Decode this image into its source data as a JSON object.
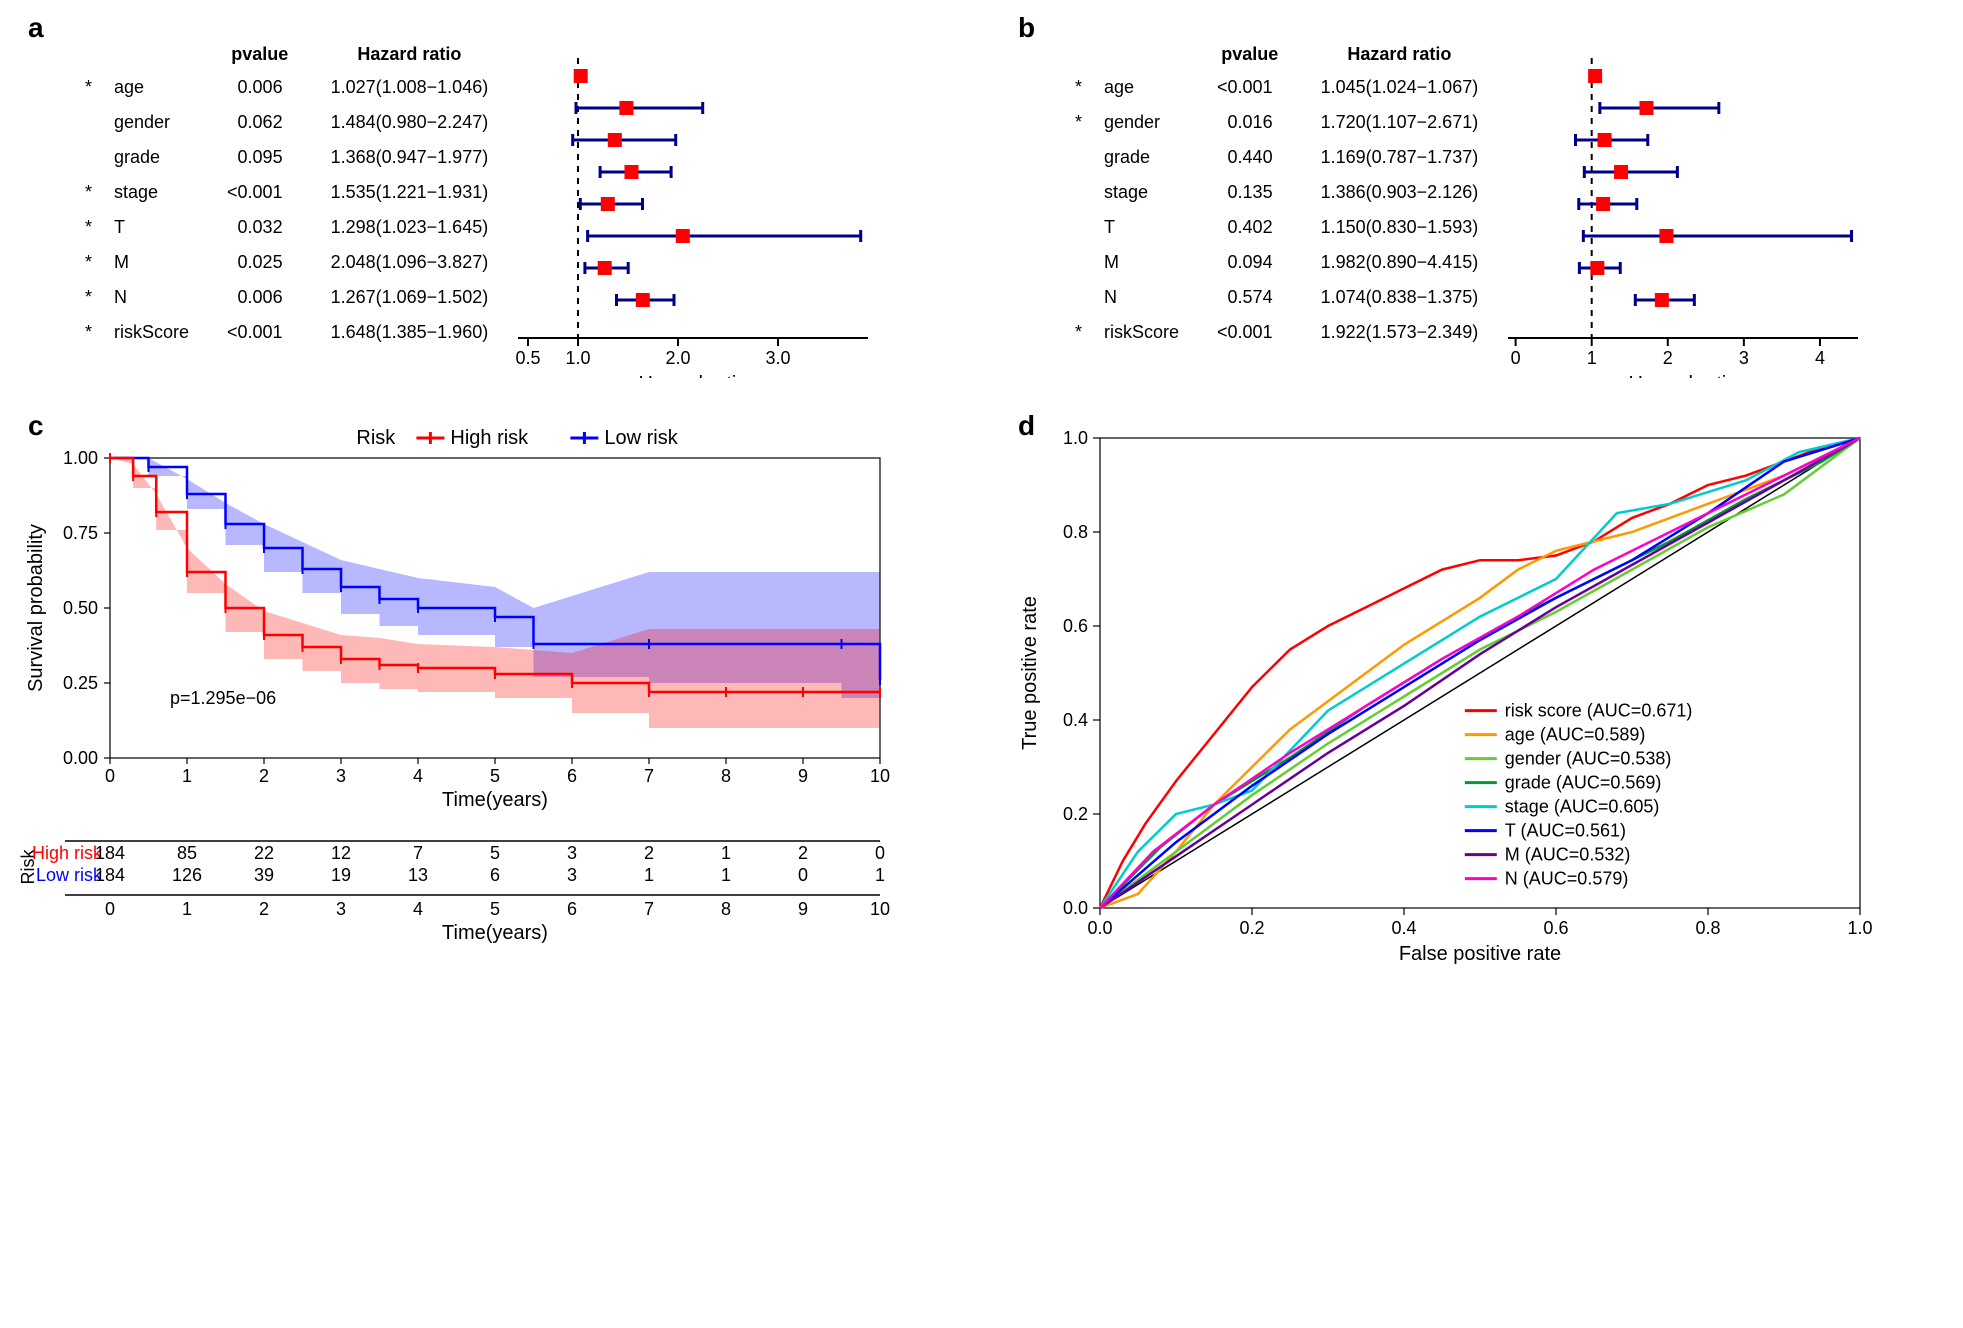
{
  "panel_a": {
    "label": "a",
    "headers": {
      "pvalue": "pvalue",
      "hr": "Hazard ratio"
    },
    "axis_label": "Hazard ratio",
    "x_ticks": [
      0.5,
      1.0,
      2.0,
      3.0
    ],
    "x_tick_labels": [
      "0.5",
      "1.0",
      "2.0",
      "3.0"
    ],
    "xlim": [
      0.4,
      3.9
    ],
    "ref_line": 1.0,
    "rows": [
      {
        "star": "*",
        "name": "age",
        "pvalue": "0.006",
        "hr_text": "1.027(1.008−1.046)",
        "hr": 1.027,
        "lo": 1.008,
        "hi": 1.046
      },
      {
        "star": "",
        "name": "gender",
        "pvalue": "0.062",
        "hr_text": "1.484(0.980−2.247)",
        "hr": 1.484,
        "lo": 0.98,
        "hi": 2.247
      },
      {
        "star": "",
        "name": "grade",
        "pvalue": "0.095",
        "hr_text": "1.368(0.947−1.977)",
        "hr": 1.368,
        "lo": 0.947,
        "hi": 1.977
      },
      {
        "star": "*",
        "name": "stage",
        "pvalue": "<0.001",
        "hr_text": "1.535(1.221−1.931)",
        "hr": 1.535,
        "lo": 1.221,
        "hi": 1.931
      },
      {
        "star": "*",
        "name": "T",
        "pvalue": "0.032",
        "hr_text": "1.298(1.023−1.645)",
        "hr": 1.298,
        "lo": 1.023,
        "hi": 1.645
      },
      {
        "star": "*",
        "name": "M",
        "pvalue": "0.025",
        "hr_text": "2.048(1.096−3.827)",
        "hr": 2.048,
        "lo": 1.096,
        "hi": 3.827
      },
      {
        "star": "*",
        "name": "N",
        "pvalue": "0.006",
        "hr_text": "1.267(1.069−1.502)",
        "hr": 1.267,
        "lo": 1.069,
        "hi": 1.502
      },
      {
        "star": "*",
        "name": "riskScore",
        "pvalue": "<0.001",
        "hr_text": "1.648(1.385−1.960)",
        "hr": 1.648,
        "lo": 1.385,
        "hi": 1.96
      }
    ],
    "colors": {
      "ci": "#00008b",
      "box": "#ff0000",
      "axis": "#000000"
    }
  },
  "panel_b": {
    "label": "b",
    "headers": {
      "pvalue": "pvalue",
      "hr": "Hazard ratio"
    },
    "axis_label": "Hazard ratio",
    "x_ticks": [
      0,
      1,
      2,
      3,
      4
    ],
    "x_tick_labels": [
      "0",
      "1",
      "2",
      "3",
      "4"
    ],
    "xlim": [
      -0.1,
      4.5
    ],
    "ref_line": 1.0,
    "rows": [
      {
        "star": "*",
        "name": "age",
        "pvalue": "<0.001",
        "hr_text": "1.045(1.024−1.067)",
        "hr": 1.045,
        "lo": 1.024,
        "hi": 1.067
      },
      {
        "star": "*",
        "name": "gender",
        "pvalue": "0.016",
        "hr_text": "1.720(1.107−2.671)",
        "hr": 1.72,
        "lo": 1.107,
        "hi": 2.671
      },
      {
        "star": "",
        "name": "grade",
        "pvalue": "0.440",
        "hr_text": "1.169(0.787−1.737)",
        "hr": 1.169,
        "lo": 0.787,
        "hi": 1.737
      },
      {
        "star": "",
        "name": "stage",
        "pvalue": "0.135",
        "hr_text": "1.386(0.903−2.126)",
        "hr": 1.386,
        "lo": 0.903,
        "hi": 2.126
      },
      {
        "star": "",
        "name": "T",
        "pvalue": "0.402",
        "hr_text": "1.150(0.830−1.593)",
        "hr": 1.15,
        "lo": 0.83,
        "hi": 1.593
      },
      {
        "star": "",
        "name": "M",
        "pvalue": "0.094",
        "hr_text": "1.982(0.890−4.415)",
        "hr": 1.982,
        "lo": 0.89,
        "hi": 4.415
      },
      {
        "star": "",
        "name": "N",
        "pvalue": "0.574",
        "hr_text": "1.074(0.838−1.375)",
        "hr": 1.074,
        "lo": 0.838,
        "hi": 1.375
      },
      {
        "star": "*",
        "name": "riskScore",
        "pvalue": "<0.001",
        "hr_text": "1.922(1.573−2.349)",
        "hr": 1.922,
        "lo": 1.573,
        "hi": 2.349
      }
    ],
    "colors": {
      "ci": "#00008b",
      "box": "#ff0000",
      "axis": "#000000"
    }
  },
  "panel_c": {
    "label": "c",
    "legend_title": "Risk",
    "legend_items": [
      {
        "label": "High risk",
        "color": "#ff0000"
      },
      {
        "label": "Low risk",
        "color": "#0000ff"
      }
    ],
    "ylabel": "Survival probability",
    "xlabel": "Time(years)",
    "y_ticks": [
      0.0,
      0.25,
      0.5,
      0.75,
      1.0
    ],
    "x_ticks": [
      0,
      1,
      2,
      3,
      4,
      5,
      6,
      7,
      8,
      9,
      10
    ],
    "p_text": "p=1.295e−06",
    "band_opacity": 0.28,
    "curves": {
      "high": {
        "color": "#ff0000",
        "points": [
          [
            0,
            1.0
          ],
          [
            0.3,
            0.94
          ],
          [
            0.6,
            0.82
          ],
          [
            1,
            0.62
          ],
          [
            1.5,
            0.5
          ],
          [
            2,
            0.41
          ],
          [
            2.5,
            0.37
          ],
          [
            3,
            0.33
          ],
          [
            3.5,
            0.31
          ],
          [
            4,
            0.3
          ],
          [
            5,
            0.28
          ],
          [
            6,
            0.25
          ],
          [
            7,
            0.22
          ],
          [
            8,
            0.22
          ],
          [
            9,
            0.22
          ],
          [
            10,
            0.22
          ]
        ],
        "lo": [
          [
            0,
            1.0
          ],
          [
            0.3,
            0.9
          ],
          [
            0.6,
            0.76
          ],
          [
            1,
            0.55
          ],
          [
            1.5,
            0.42
          ],
          [
            2,
            0.33
          ],
          [
            2.5,
            0.29
          ],
          [
            3,
            0.25
          ],
          [
            3.5,
            0.23
          ],
          [
            4,
            0.22
          ],
          [
            5,
            0.2
          ],
          [
            6,
            0.15
          ],
          [
            7,
            0.1
          ],
          [
            8,
            0.1
          ],
          [
            9,
            0.1
          ],
          [
            10,
            0.05
          ]
        ],
        "hi": [
          [
            0,
            1.0
          ],
          [
            0.3,
            0.98
          ],
          [
            0.6,
            0.88
          ],
          [
            1,
            0.7
          ],
          [
            1.5,
            0.58
          ],
          [
            2,
            0.49
          ],
          [
            2.5,
            0.45
          ],
          [
            3,
            0.41
          ],
          [
            3.5,
            0.4
          ],
          [
            4,
            0.38
          ],
          [
            5,
            0.37
          ],
          [
            6,
            0.35
          ],
          [
            7,
            0.43
          ],
          [
            8,
            0.43
          ],
          [
            9,
            0.43
          ],
          [
            10,
            0.43
          ]
        ]
      },
      "low": {
        "color": "#0000ff",
        "points": [
          [
            0,
            1.0
          ],
          [
            0.5,
            0.97
          ],
          [
            1,
            0.88
          ],
          [
            1.5,
            0.78
          ],
          [
            2,
            0.7
          ],
          [
            2.5,
            0.63
          ],
          [
            3,
            0.57
          ],
          [
            3.5,
            0.53
          ],
          [
            4,
            0.5
          ],
          [
            5,
            0.47
          ],
          [
            5.5,
            0.38
          ],
          [
            7,
            0.38
          ],
          [
            9.5,
            0.38
          ],
          [
            10,
            0.26
          ]
        ],
        "lo": [
          [
            0,
            1.0
          ],
          [
            0.5,
            0.94
          ],
          [
            1,
            0.83
          ],
          [
            1.5,
            0.71
          ],
          [
            2,
            0.62
          ],
          [
            2.5,
            0.55
          ],
          [
            3,
            0.48
          ],
          [
            3.5,
            0.44
          ],
          [
            4,
            0.41
          ],
          [
            5,
            0.37
          ],
          [
            5.5,
            0.27
          ],
          [
            7,
            0.25
          ],
          [
            9.5,
            0.2
          ],
          [
            10,
            0.1
          ]
        ],
        "hi": [
          [
            0,
            1.0
          ],
          [
            0.5,
            1.0
          ],
          [
            1,
            0.93
          ],
          [
            1.5,
            0.85
          ],
          [
            2,
            0.78
          ],
          [
            2.5,
            0.72
          ],
          [
            3,
            0.66
          ],
          [
            3.5,
            0.63
          ],
          [
            4,
            0.6
          ],
          [
            5,
            0.57
          ],
          [
            5.5,
            0.5
          ],
          [
            7,
            0.62
          ],
          [
            9.5,
            0.62
          ],
          [
            10,
            0.62
          ]
        ]
      }
    },
    "risk_table": {
      "title": "Risk",
      "rows": [
        {
          "label": "High risk",
          "color": "#ff0000",
          "counts": [
            184,
            85,
            22,
            12,
            7,
            5,
            3,
            2,
            1,
            2,
            0
          ]
        },
        {
          "label": "Low risk",
          "color": "#0000ff",
          "counts": [
            184,
            126,
            39,
            19,
            13,
            6,
            3,
            1,
            1,
            0,
            1
          ]
        }
      ],
      "xlabel": "Time(years)"
    }
  },
  "panel_d": {
    "label": "d",
    "xlabel": "False positive rate",
    "ylabel": "True positive rate",
    "ticks": [
      0.0,
      0.2,
      0.4,
      0.6,
      0.8,
      1.0
    ],
    "diag_color": "#000000",
    "curves": [
      {
        "label": "risk score (AUC=0.671)",
        "color": "#ff0000",
        "points": [
          [
            0,
            0
          ],
          [
            0.03,
            0.1
          ],
          [
            0.06,
            0.18
          ],
          [
            0.1,
            0.27
          ],
          [
            0.15,
            0.37
          ],
          [
            0.2,
            0.47
          ],
          [
            0.25,
            0.55
          ],
          [
            0.3,
            0.6
          ],
          [
            0.35,
            0.64
          ],
          [
            0.4,
            0.68
          ],
          [
            0.45,
            0.72
          ],
          [
            0.5,
            0.74
          ],
          [
            0.55,
            0.74
          ],
          [
            0.6,
            0.75
          ],
          [
            0.65,
            0.78
          ],
          [
            0.7,
            0.83
          ],
          [
            0.75,
            0.86
          ],
          [
            0.8,
            0.9
          ],
          [
            0.85,
            0.92
          ],
          [
            0.9,
            0.95
          ],
          [
            0.95,
            0.98
          ],
          [
            1,
            1
          ]
        ]
      },
      {
        "label": "age (AUC=0.589)",
        "color": "#ff9900",
        "points": [
          [
            0,
            0
          ],
          [
            0.05,
            0.03
          ],
          [
            0.1,
            0.12
          ],
          [
            0.15,
            0.22
          ],
          [
            0.2,
            0.3
          ],
          [
            0.25,
            0.38
          ],
          [
            0.3,
            0.44
          ],
          [
            0.35,
            0.5
          ],
          [
            0.4,
            0.56
          ],
          [
            0.45,
            0.61
          ],
          [
            0.5,
            0.66
          ],
          [
            0.55,
            0.72
          ],
          [
            0.6,
            0.76
          ],
          [
            0.65,
            0.78
          ],
          [
            0.7,
            0.8
          ],
          [
            0.75,
            0.83
          ],
          [
            0.8,
            0.86
          ],
          [
            0.85,
            0.89
          ],
          [
            0.9,
            0.92
          ],
          [
            0.95,
            0.96
          ],
          [
            1,
            1
          ]
        ]
      },
      {
        "label": "gender (AUC=0.538)",
        "color": "#66cc33",
        "points": [
          [
            0,
            0
          ],
          [
            0.1,
            0.12
          ],
          [
            0.2,
            0.24
          ],
          [
            0.3,
            0.35
          ],
          [
            0.4,
            0.45
          ],
          [
            0.5,
            0.55
          ],
          [
            0.6,
            0.63
          ],
          [
            0.7,
            0.72
          ],
          [
            0.8,
            0.81
          ],
          [
            0.9,
            0.88
          ],
          [
            1,
            1
          ]
        ]
      },
      {
        "label": "grade (AUC=0.569)",
        "color": "#009933",
        "points": [
          [
            0,
            0
          ],
          [
            0.08,
            0.13
          ],
          [
            0.15,
            0.22
          ],
          [
            0.25,
            0.32
          ],
          [
            0.35,
            0.43
          ],
          [
            0.45,
            0.53
          ],
          [
            0.55,
            0.62
          ],
          [
            0.65,
            0.7
          ],
          [
            0.75,
            0.78
          ],
          [
            0.85,
            0.87
          ],
          [
            0.95,
            0.95
          ],
          [
            1,
            1
          ]
        ]
      },
      {
        "label": "stage (AUC=0.605)",
        "color": "#00cccc",
        "points": [
          [
            0,
            0
          ],
          [
            0.05,
            0.12
          ],
          [
            0.1,
            0.2
          ],
          [
            0.15,
            0.22
          ],
          [
            0.2,
            0.25
          ],
          [
            0.3,
            0.42
          ],
          [
            0.4,
            0.52
          ],
          [
            0.5,
            0.62
          ],
          [
            0.6,
            0.7
          ],
          [
            0.68,
            0.84
          ],
          [
            0.75,
            0.86
          ],
          [
            0.85,
            0.91
          ],
          [
            0.92,
            0.97
          ],
          [
            1,
            1
          ]
        ]
      },
      {
        "label": "T (AUC=0.561)",
        "color": "#0000ff",
        "points": [
          [
            0,
            0
          ],
          [
            0.1,
            0.14
          ],
          [
            0.2,
            0.26
          ],
          [
            0.3,
            0.37
          ],
          [
            0.4,
            0.47
          ],
          [
            0.5,
            0.57
          ],
          [
            0.6,
            0.66
          ],
          [
            0.7,
            0.74
          ],
          [
            0.8,
            0.84
          ],
          [
            0.9,
            0.95
          ],
          [
            1,
            1
          ]
        ]
      },
      {
        "label": "M (AUC=0.532)",
        "color": "#660099",
        "points": [
          [
            0,
            0
          ],
          [
            0.1,
            0.11
          ],
          [
            0.2,
            0.22
          ],
          [
            0.3,
            0.33
          ],
          [
            0.4,
            0.43
          ],
          [
            0.5,
            0.54
          ],
          [
            0.6,
            0.64
          ],
          [
            0.7,
            0.73
          ],
          [
            0.8,
            0.82
          ],
          [
            0.9,
            0.91
          ],
          [
            1,
            1
          ]
        ]
      },
      {
        "label": "N (AUC=0.579)",
        "color": "#ff00cc",
        "points": [
          [
            0,
            0
          ],
          [
            0.07,
            0.12
          ],
          [
            0.15,
            0.22
          ],
          [
            0.25,
            0.33
          ],
          [
            0.35,
            0.43
          ],
          [
            0.45,
            0.53
          ],
          [
            0.55,
            0.62
          ],
          [
            0.65,
            0.72
          ],
          [
            0.75,
            0.8
          ],
          [
            0.85,
            0.88
          ],
          [
            0.95,
            0.96
          ],
          [
            1,
            1
          ]
        ]
      }
    ]
  }
}
